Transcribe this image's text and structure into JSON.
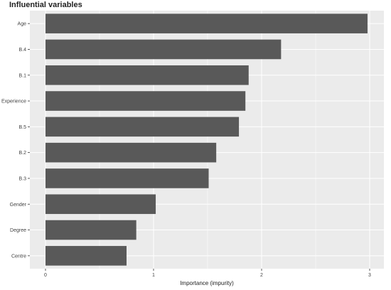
{
  "chart_data": {
    "type": "bar",
    "orientation": "horizontal",
    "title": "Influential variables",
    "xlabel": "Importance (impurity)",
    "ylabel": "",
    "categories": [
      "Age",
      "B.4",
      "B.1",
      "Experience",
      "B.5",
      "B.2",
      "B.3",
      "Gender",
      "Degree",
      "Centre"
    ],
    "values": [
      2.98,
      2.18,
      1.88,
      1.85,
      1.79,
      1.58,
      1.51,
      1.02,
      0.84,
      0.75
    ],
    "xlim": [
      0,
      3
    ],
    "xticks": [
      "0",
      "1",
      "2",
      "3"
    ],
    "grid": true,
    "legend": "none"
  },
  "colors": {
    "panel_background": "#ebebeb",
    "grid_major": "#ffffff",
    "bar_fill": "#595959",
    "text": "#222222"
  }
}
